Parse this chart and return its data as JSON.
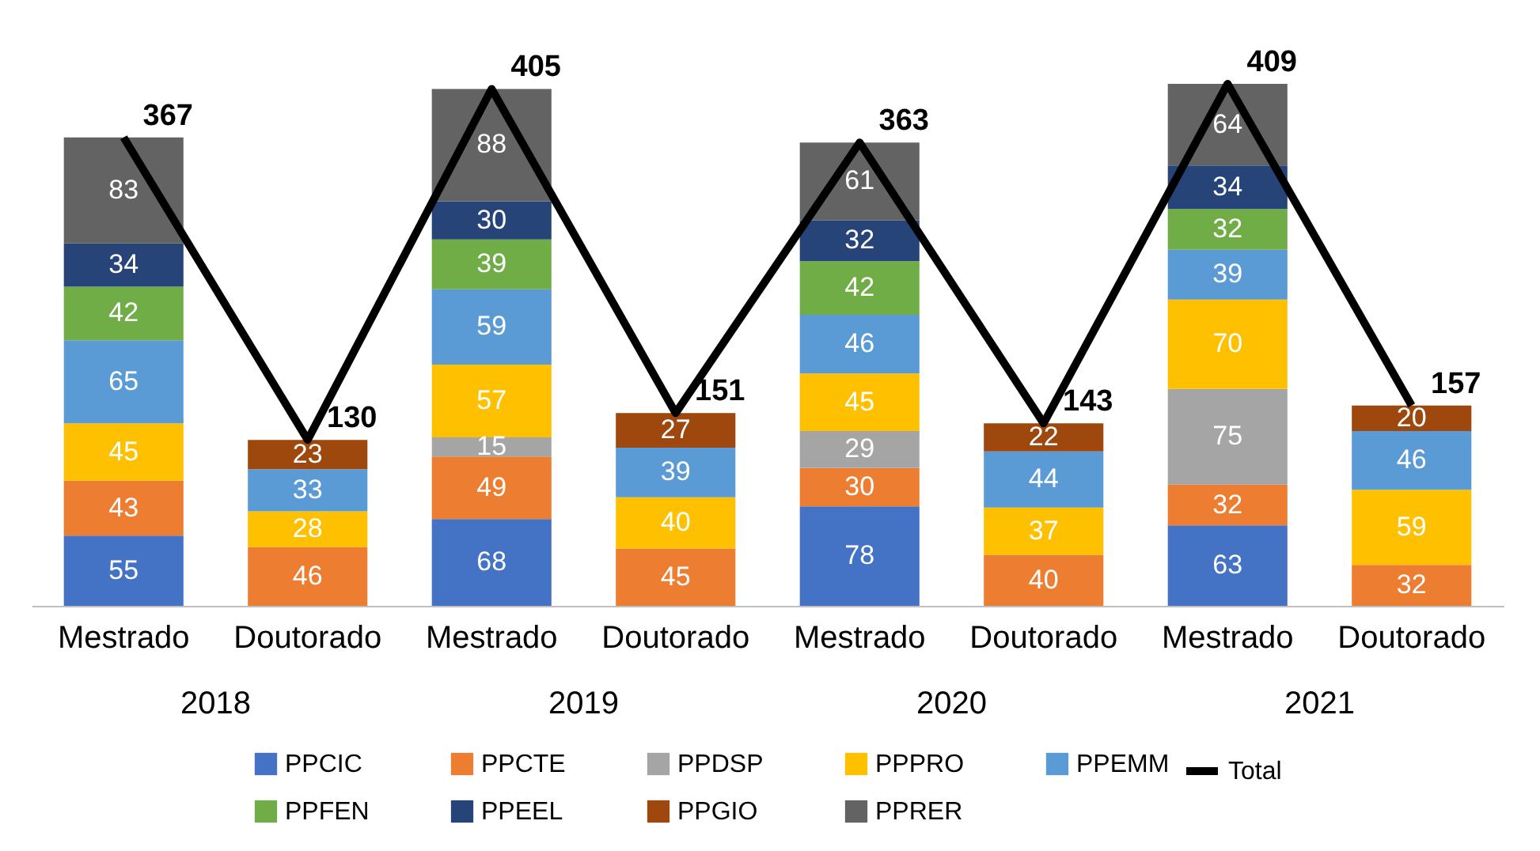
{
  "chart_data": {
    "type": "bar",
    "stacked": true,
    "data_labels": true,
    "legend": "bottom",
    "tick_labels": "x",
    "categories": [
      "Mestrado",
      "Doutorado",
      "Mestrado",
      "Doutorado",
      "Mestrado",
      "Doutorado",
      "Mestrado",
      "Doutorado"
    ],
    "annotations": [
      "2018",
      "2019",
      "2020",
      "2021"
    ],
    "series": [
      {
        "name": "PPCIC",
        "color": "#4472c4",
        "values": [
          55,
          null,
          68,
          null,
          78,
          null,
          63,
          null
        ]
      },
      {
        "name": "PPCTE",
        "color": "#ed7d31",
        "values": [
          43,
          46,
          49,
          45,
          30,
          40,
          32,
          32
        ]
      },
      {
        "name": "PPDSP",
        "color": "#a5a5a5",
        "values": [
          null,
          null,
          15,
          null,
          29,
          null,
          75,
          null
        ]
      },
      {
        "name": "PPPRO",
        "color": "#ffc000",
        "values": [
          45,
          28,
          57,
          40,
          45,
          37,
          70,
          59
        ]
      },
      {
        "name": "PPEMM",
        "color": "#5b9bd5",
        "values": [
          65,
          33,
          59,
          39,
          46,
          44,
          39,
          46
        ]
      },
      {
        "name": "PPFEN",
        "color": "#70ad47",
        "values": [
          42,
          null,
          39,
          null,
          42,
          null,
          32,
          null
        ]
      },
      {
        "name": "PPEEL",
        "color": "#264478",
        "values": [
          34,
          null,
          30,
          null,
          32,
          null,
          34,
          null
        ]
      },
      {
        "name": "PPGIO",
        "color": "#9e480e",
        "values": [
          null,
          23,
          null,
          27,
          null,
          22,
          null,
          20
        ]
      },
      {
        "name": "PPRER",
        "color": "#636363",
        "values": [
          83,
          null,
          88,
          null,
          61,
          null,
          64,
          null
        ]
      },
      {
        "name": "Total",
        "type": "line",
        "color": "#000000",
        "values": [
          367,
          130,
          405,
          151,
          363,
          143,
          409,
          157
        ]
      }
    ]
  }
}
